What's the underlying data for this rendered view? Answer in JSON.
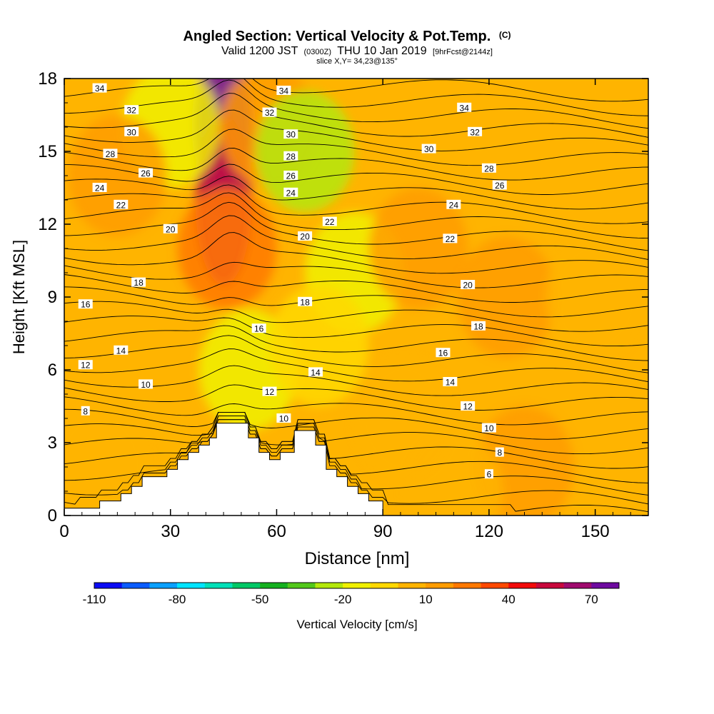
{
  "header": {
    "title": "Angled Section: Vertical Velocity & Pot.Temp.",
    "title_mark": "(C)",
    "valid_prefix": "Valid 1200 JST",
    "valid_utc": "(0300Z)",
    "valid_date": "THU 10 Jan 2019",
    "forecast": "[9hrFcst@2144z]",
    "slice": "slice X,Y= 34,23@135°"
  },
  "colorbar": {
    "label": "Vertical Velocity [cm/s]",
    "colors": [
      "#0b0bf4",
      "#0a5cff",
      "#0aa0ff",
      "#00e4ff",
      "#00e0b8",
      "#00c866",
      "#14b01e",
      "#52c81a",
      "#b4e80a",
      "#f0f000",
      "#ffd800",
      "#ffb400",
      "#ff9c00",
      "#ff7800",
      "#ff4800",
      "#f20a0a",
      "#c8083c",
      "#a00a6e",
      "#6e0aa0"
    ],
    "tick_labels": [
      "-110",
      "-80",
      "-50",
      "-20",
      "10",
      "40",
      "70"
    ],
    "tick_index": [
      0,
      3,
      6,
      9,
      12,
      15,
      18
    ]
  },
  "chart_data": {
    "type": "heatmap",
    "xlabel": "Distance [nm]",
    "ylabel": "Height [Kft MSL]",
    "xlim": [
      0,
      165
    ],
    "ylim": [
      0,
      18
    ],
    "xticks": [
      0,
      30,
      60,
      90,
      120,
      150
    ],
    "yticks": [
      0,
      3,
      6,
      9,
      12,
      15,
      18
    ],
    "terrain": [
      [
        0,
        0.3
      ],
      [
        10,
        0.3
      ],
      [
        10,
        0.6
      ],
      [
        16,
        0.6
      ],
      [
        16,
        0.9
      ],
      [
        19,
        0.9
      ],
      [
        19,
        1.2
      ],
      [
        22,
        1.2
      ],
      [
        22,
        1.6
      ],
      [
        29,
        1.6
      ],
      [
        29,
        1.9
      ],
      [
        32,
        1.9
      ],
      [
        32,
        2.3
      ],
      [
        35,
        2.3
      ],
      [
        35,
        2.6
      ],
      [
        38,
        2.6
      ],
      [
        38,
        2.9
      ],
      [
        41,
        2.9
      ],
      [
        41,
        3.2
      ],
      [
        43,
        3.2
      ],
      [
        43,
        3.8
      ],
      [
        52,
        3.8
      ],
      [
        52,
        3.2
      ],
      [
        55,
        3.2
      ],
      [
        55,
        2.6
      ],
      [
        58,
        2.6
      ],
      [
        58,
        2.3
      ],
      [
        61,
        2.3
      ],
      [
        61,
        2.6
      ],
      [
        65,
        2.6
      ],
      [
        65,
        3.5
      ],
      [
        71,
        3.5
      ],
      [
        71,
        2.9
      ],
      [
        74,
        2.9
      ],
      [
        74,
        1.9
      ],
      [
        77,
        1.9
      ],
      [
        77,
        1.6
      ],
      [
        80,
        1.6
      ],
      [
        80,
        1.2
      ],
      [
        83,
        1.2
      ],
      [
        83,
        0.9
      ],
      [
        86,
        0.9
      ],
      [
        86,
        0.6
      ],
      [
        90,
        0.6
      ],
      [
        90,
        0
      ],
      [
        165,
        0
      ]
    ],
    "velocity_field": [
      {
        "x": 45,
        "y": 16,
        "value": 70
      },
      {
        "x": 45,
        "y": 13,
        "value": 50
      },
      {
        "x": 46,
        "y": 11,
        "value": 25
      },
      {
        "x": 58,
        "y": 16,
        "value": 18
      },
      {
        "x": 68,
        "y": 15,
        "value": -25
      },
      {
        "x": 82,
        "y": 10,
        "value": -15
      },
      {
        "x": 30,
        "y": 16,
        "value": -15
      },
      {
        "x": 52,
        "y": 6,
        "value": -15
      },
      {
        "x": 72,
        "y": 7,
        "value": -10
      },
      {
        "x": 15,
        "y": 14,
        "value": 12
      },
      {
        "x": 125,
        "y": 9,
        "value": 12
      },
      {
        "x": 100,
        "y": 11,
        "value": 10
      },
      {
        "x": 130,
        "y": 2,
        "value": 12
      },
      {
        "x": 150,
        "y": 9,
        "value": 0
      },
      {
        "x": 10,
        "y": 2,
        "value": 3
      },
      {
        "x": 110,
        "y": 1,
        "value": 2
      },
      {
        "x": 96,
        "y": 4,
        "value": 3
      }
    ],
    "contour_labels": [
      {
        "text": "34",
        "x": 10,
        "y": 17.6
      },
      {
        "text": "34",
        "x": 62,
        "y": 17.5
      },
      {
        "text": "34",
        "x": 113,
        "y": 16.8
      },
      {
        "text": "32",
        "x": 19,
        "y": 16.7
      },
      {
        "text": "32",
        "x": 58,
        "y": 16.6
      },
      {
        "text": "32",
        "x": 116,
        "y": 15.8
      },
      {
        "text": "30",
        "x": 19,
        "y": 15.8
      },
      {
        "text": "30",
        "x": 64,
        "y": 15.7
      },
      {
        "text": "30",
        "x": 103,
        "y": 15.1
      },
      {
        "text": "28",
        "x": 13,
        "y": 14.9
      },
      {
        "text": "28",
        "x": 64,
        "y": 14.8
      },
      {
        "text": "28",
        "x": 120,
        "y": 14.3
      },
      {
        "text": "26",
        "x": 23,
        "y": 14.1
      },
      {
        "text": "26",
        "x": 64,
        "y": 14.0
      },
      {
        "text": "26",
        "x": 123,
        "y": 13.6
      },
      {
        "text": "24",
        "x": 10,
        "y": 13.5
      },
      {
        "text": "24",
        "x": 64,
        "y": 13.3
      },
      {
        "text": "24",
        "x": 110,
        "y": 12.8
      },
      {
        "text": "22",
        "x": 16,
        "y": 12.8
      },
      {
        "text": "22",
        "x": 75,
        "y": 12.1
      },
      {
        "text": "22",
        "x": 109,
        "y": 11.4
      },
      {
        "text": "20",
        "x": 30,
        "y": 11.8
      },
      {
        "text": "20",
        "x": 68,
        "y": 11.5
      },
      {
        "text": "20",
        "x": 114,
        "y": 9.5
      },
      {
        "text": "18",
        "x": 21,
        "y": 9.6
      },
      {
        "text": "18",
        "x": 68,
        "y": 8.8
      },
      {
        "text": "18",
        "x": 117,
        "y": 7.8
      },
      {
        "text": "16",
        "x": 6,
        "y": 8.7
      },
      {
        "text": "16",
        "x": 55,
        "y": 7.7
      },
      {
        "text": "16",
        "x": 107,
        "y": 6.7
      },
      {
        "text": "14",
        "x": 16,
        "y": 6.8
      },
      {
        "text": "14",
        "x": 71,
        "y": 5.9
      },
      {
        "text": "14",
        "x": 109,
        "y": 5.5
      },
      {
        "text": "12",
        "x": 6,
        "y": 6.2
      },
      {
        "text": "12",
        "x": 58,
        "y": 5.1
      },
      {
        "text": "12",
        "x": 114,
        "y": 4.5
      },
      {
        "text": "10",
        "x": 23,
        "y": 5.4
      },
      {
        "text": "10",
        "x": 62,
        "y": 4.0
      },
      {
        "text": "10",
        "x": 120,
        "y": 3.6
      },
      {
        "text": "8",
        "x": 6,
        "y": 4.3
      },
      {
        "text": "8",
        "x": 123,
        "y": 2.6
      },
      {
        "text": "6",
        "x": 120,
        "y": 1.7
      }
    ]
  }
}
